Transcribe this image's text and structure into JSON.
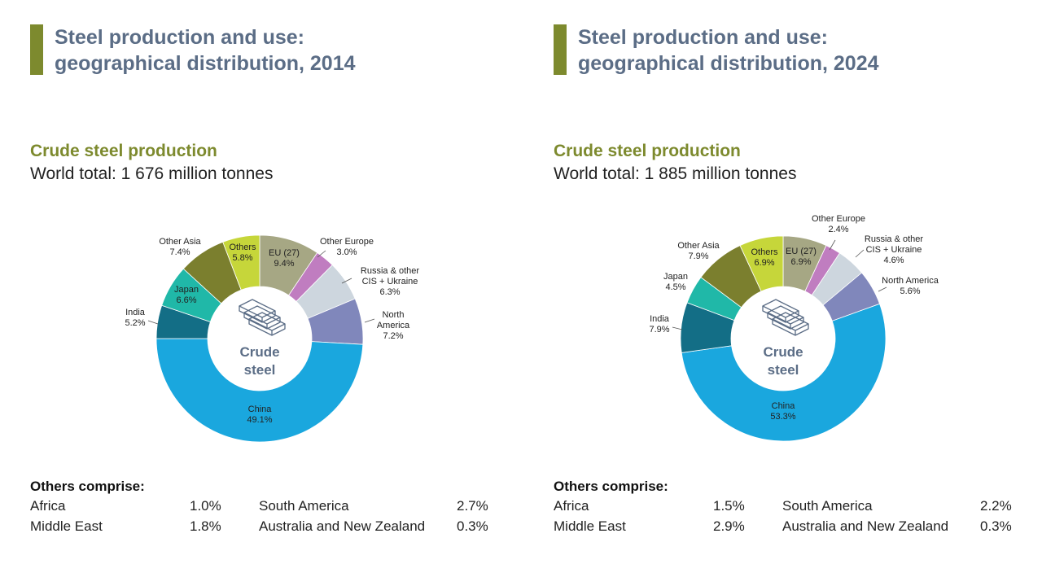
{
  "panels": [
    {
      "title_line1": "Steel production and use:",
      "title_line2": "geographical distribution, 2014",
      "section_title": "Crude steel production",
      "world_total": "World total: 1 676 million tonnes",
      "center_line1": "Crude",
      "center_line2": "steel",
      "others": {
        "heading": "Others comprise:",
        "items": [
          {
            "name": "Africa",
            "value": "1.0%"
          },
          {
            "name": "Middle East",
            "value": "1.8%"
          },
          {
            "name": "South America",
            "value": "2.7%"
          },
          {
            "name": "Australia and New Zealand",
            "value": "0.3%"
          }
        ]
      }
    },
    {
      "title_line1": "Steel production and use:",
      "title_line2": "geographical distribution, 2024",
      "section_title": "Crude steel production",
      "world_total": "World total: 1 885 million tonnes",
      "center_line1": "Crude",
      "center_line2": "steel",
      "others": {
        "heading": "Others comprise:",
        "items": [
          {
            "name": "Africa",
            "value": "1.5%"
          },
          {
            "name": "Middle East",
            "value": "2.9%"
          },
          {
            "name": "South America",
            "value": "2.2%"
          },
          {
            "name": "Australia and New Zealand",
            "value": "0.3%"
          }
        ]
      }
    }
  ],
  "chart_data": [
    {
      "type": "pie",
      "title": "Crude steel production",
      "segments": [
        {
          "label": [
            "EU (27)",
            "9.4%"
          ],
          "value": 9.4,
          "color": "#a6a784"
        },
        {
          "label": [
            "Other Europe",
            "3.0%"
          ],
          "value": 3.0,
          "color": "#c07dc0"
        },
        {
          "label": [
            "Russia & other",
            "CIS + Ukraine",
            "6.3%"
          ],
          "value": 6.3,
          "color": "#cdd6de"
        },
        {
          "label": [
            "North",
            "America",
            "7.2%"
          ],
          "value": 7.2,
          "color": "#8087bb"
        },
        {
          "label": [
            "China",
            "49.1%"
          ],
          "value": 49.1,
          "color": "#1aa7de"
        },
        {
          "label": [
            "India",
            "5.2%"
          ],
          "value": 5.2,
          "color": "#136e86"
        },
        {
          "label": [
            "Japan",
            "6.6%"
          ],
          "value": 6.6,
          "color": "#20b8a8"
        },
        {
          "label": [
            "Other Asia",
            "7.4%"
          ],
          "value": 7.4,
          "color": "#7b7f2e"
        },
        {
          "label": [
            "Others",
            "5.8%"
          ],
          "value": 5.8,
          "color": "#c6d63a"
        }
      ]
    },
    {
      "type": "pie",
      "title": "Crude steel production",
      "segments": [
        {
          "label": [
            "EU (27)",
            "6.9%"
          ],
          "value": 6.9,
          "color": "#a6a784"
        },
        {
          "label": [
            "Other Europe",
            "2.4%"
          ],
          "value": 2.4,
          "color": "#c07dc0"
        },
        {
          "label": [
            "Russia & other",
            "CIS + Ukraine",
            "4.6%"
          ],
          "value": 4.6,
          "color": "#cdd6de"
        },
        {
          "label": [
            "North America",
            "5.6%"
          ],
          "value": 5.6,
          "color": "#8087bb"
        },
        {
          "label": [
            "China",
            "53.3%"
          ],
          "value": 53.3,
          "color": "#1aa7de"
        },
        {
          "label": [
            "India",
            "7.9%"
          ],
          "value": 7.9,
          "color": "#136e86"
        },
        {
          "label": [
            "Japan",
            "4.5%"
          ],
          "value": 4.5,
          "color": "#20b8a8"
        },
        {
          "label": [
            "Other Asia",
            "7.9%"
          ],
          "value": 7.9,
          "color": "#7b7f2e"
        },
        {
          "label": [
            "Others",
            "6.9%"
          ],
          "value": 6.9,
          "color": "#c6d63a"
        }
      ]
    }
  ]
}
